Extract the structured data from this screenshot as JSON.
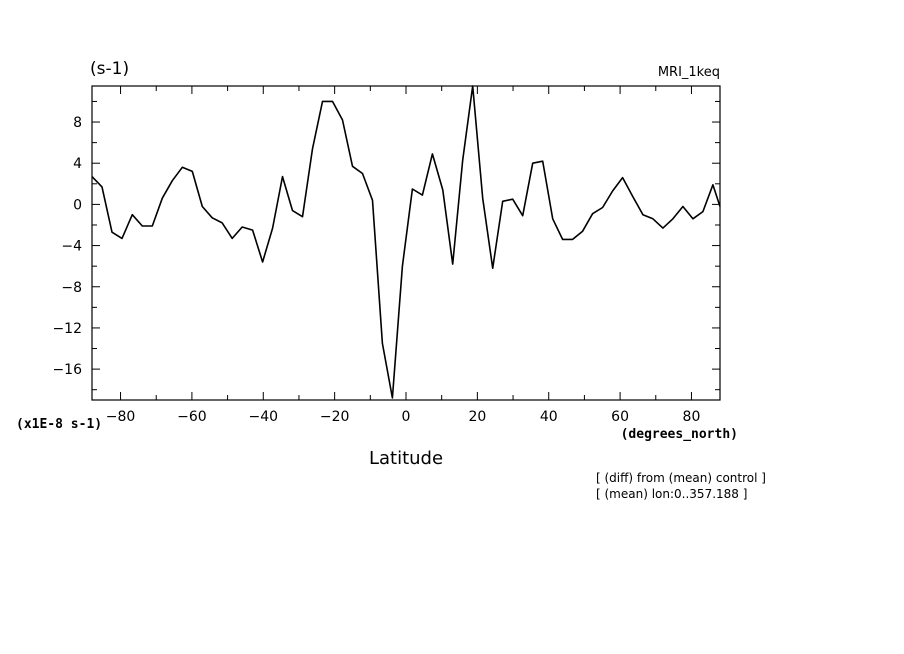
{
  "chart_data": {
    "type": "line",
    "title": "",
    "units_label": "(s-1)",
    "model_label": "MRI_1keq",
    "xlabel": "Latitude",
    "xunit_label": "(degrees_north)",
    "yscale_label": "(x1E-8 s-1)",
    "notes": [
      "[ (diff) from (mean) control ]",
      "[ (mean) lon:0..357.188 ]"
    ],
    "xlim": [
      -88,
      88
    ],
    "ylim": [
      -19,
      11.5
    ],
    "xticks": [
      -80,
      -60,
      -40,
      -20,
      0,
      20,
      40,
      60,
      80
    ],
    "xtick_labels": [
      "−80",
      "−60",
      "−40",
      "−20",
      "0",
      "20",
      "40",
      "60",
      "80"
    ],
    "yticks": [
      8,
      4,
      0,
      -4,
      -8,
      -12,
      -16
    ],
    "ytick_labels": [
      "8",
      "4",
      "0",
      "−4",
      "−8",
      "−12",
      "−16"
    ],
    "grid": false,
    "series": [
      {
        "x": [
          -88,
          -85.2,
          -82.4,
          -79.6,
          -76.7,
          -73.9,
          -71.1,
          -68.3,
          -65.5,
          -62.7,
          -59.9,
          -57.1,
          -54.3,
          -51.5,
          -48.7,
          -45.9,
          -43.0,
          -40.2,
          -37.4,
          -34.6,
          -31.8,
          -29.0,
          -26.2,
          -23.4,
          -20.6,
          -17.8,
          -15.0,
          -12.2,
          -9.4,
          -6.6,
          -3.8,
          -1.0,
          1.8,
          4.6,
          7.4,
          10.3,
          13.1,
          15.9,
          18.7,
          21.5,
          24.3,
          27.1,
          29.9,
          32.7,
          35.5,
          38.3,
          41.1,
          43.9,
          46.7,
          49.5,
          52.3,
          55.1,
          57.9,
          60.7,
          63.5,
          66.4,
          69.2,
          72.0,
          74.8,
          77.6,
          80.4,
          83.2,
          86.0,
          88.0
        ],
        "values": [
          2.7,
          1.7,
          -2.7,
          -3.3,
          -1.0,
          -2.1,
          -2.1,
          0.6,
          2.3,
          3.6,
          3.2,
          -0.2,
          -1.3,
          -1.8,
          -3.3,
          -2.2,
          -2.5,
          -5.6,
          -2.3,
          2.7,
          -0.6,
          -1.2,
          5.4,
          10.0,
          10.0,
          8.2,
          3.7,
          3.0,
          0.4,
          -13.5,
          -18.8,
          -6.0,
          1.5,
          0.9,
          4.9,
          1.4,
          -5.8,
          4.3,
          11.5,
          0.6,
          -6.2,
          0.3,
          0.5,
          -1.1,
          4.0,
          4.2,
          -1.4,
          -3.4,
          -3.4,
          -2.6,
          -0.9,
          -0.3,
          1.3,
          2.6,
          0.8,
          -1.0,
          -1.4,
          -2.3,
          -1.4,
          -0.2,
          -1.4,
          -0.7,
          1.9,
          -0.2
        ]
      }
    ]
  }
}
